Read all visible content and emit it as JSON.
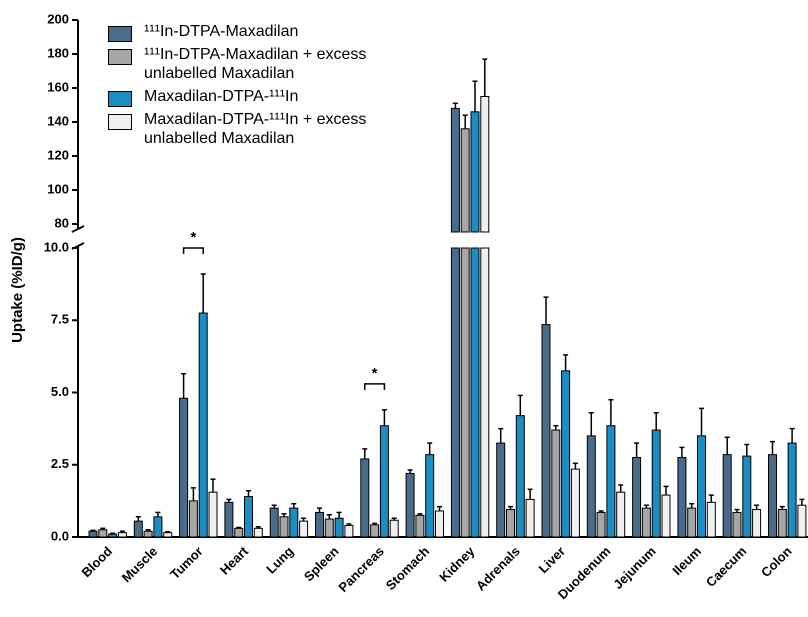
{
  "chart_data": {
    "type": "bar",
    "y_label": "Uptake (%ID/g)",
    "categories": [
      "Blood",
      "Muscle",
      "Tumor",
      "Heart",
      "Lung",
      "Spleen",
      "Pancreas",
      "Stomach",
      "Kidney",
      "Adrenals",
      "Liver",
      "Duodenum",
      "Jejunum",
      "Ileum",
      "Caecum",
      "Colon"
    ],
    "series": [
      {
        "name": "¹¹¹In-DTPA-Maxadilan",
        "color": "#4a6b8a",
        "values": [
          0.2,
          0.55,
          4.8,
          1.2,
          1.0,
          0.85,
          2.7,
          2.2,
          148,
          3.25,
          7.35,
          3.5,
          2.75,
          2.75,
          2.85,
          2.85
        ],
        "errors": [
          0.03,
          0.15,
          0.85,
          0.1,
          0.1,
          0.15,
          0.35,
          0.12,
          3,
          0.5,
          0.95,
          0.8,
          0.5,
          0.35,
          0.6,
          0.45
        ]
      },
      {
        "name": "¹¹¹In-DTPA-Maxadilan + excess unlabelled Maxadilan",
        "color": "#a6a6a6",
        "values": [
          0.25,
          0.2,
          1.25,
          0.3,
          0.7,
          0.62,
          0.42,
          0.75,
          136,
          0.95,
          3.7,
          0.85,
          1.0,
          1.0,
          0.85,
          0.95
        ],
        "errors": [
          0.05,
          0.05,
          0.45,
          0.03,
          0.1,
          0.15,
          0.05,
          0.05,
          8,
          0.1,
          0.15,
          0.05,
          0.1,
          0.15,
          0.1,
          0.1
        ]
      },
      {
        "name": "Maxadilan-DTPA-¹¹¹In",
        "color": "#1b8cc4",
        "values": [
          0.1,
          0.7,
          7.75,
          1.4,
          1.0,
          0.65,
          3.85,
          2.85,
          146,
          4.2,
          5.75,
          3.85,
          3.7,
          3.5,
          2.8,
          3.25
        ],
        "errors": [
          0.03,
          0.15,
          1.35,
          0.2,
          0.15,
          0.2,
          0.55,
          0.4,
          18,
          0.7,
          0.55,
          0.9,
          0.6,
          0.95,
          0.4,
          0.5
        ]
      },
      {
        "name": "Maxadilan-DTPA-¹¹¹In + excess unlabelled Maxadilan",
        "color": "#efefef",
        "values": [
          0.15,
          0.15,
          1.55,
          0.3,
          0.55,
          0.4,
          0.58,
          0.9,
          155,
          1.3,
          2.35,
          1.55,
          1.45,
          1.2,
          0.95,
          1.1
        ],
        "errors": [
          0.05,
          0.03,
          0.45,
          0.05,
          0.1,
          0.05,
          0.07,
          0.15,
          22,
          0.35,
          0.2,
          0.25,
          0.3,
          0.25,
          0.15,
          0.2
        ]
      }
    ],
    "ylim_lower": [
      0,
      10
    ],
    "yticks_lower": [
      {
        "value": 0,
        "label": "0.0"
      },
      2.5,
      {
        "value": 5,
        "label": "5.0"
      },
      7.5,
      {
        "value": 10,
        "label": "10.0"
      }
    ],
    "ylim_upper": [
      80,
      200
    ],
    "yticks_upper": [
      80,
      100,
      120,
      140,
      160,
      180,
      200
    ],
    "annotations": [
      {
        "text": "*",
        "category": "Tumor"
      },
      {
        "text": "*",
        "category": "Pancreas"
      }
    ],
    "legend": "upper left"
  }
}
